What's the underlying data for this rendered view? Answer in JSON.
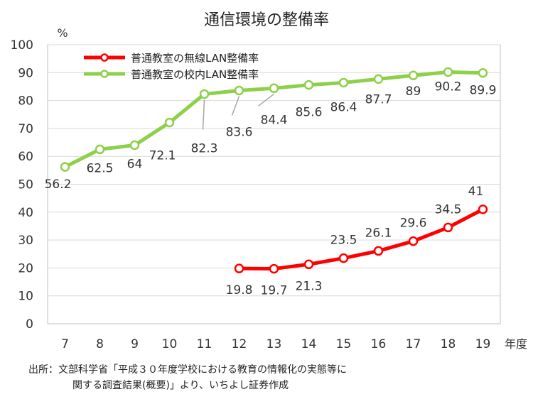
{
  "title": "通信環境の整備率",
  "chart_data": {
    "type": "line",
    "title": "通信環境の整備率",
    "ylabel": "%",
    "xlabel": "年度",
    "ylim": [
      0,
      100
    ],
    "yticks": [
      0,
      10,
      20,
      30,
      40,
      50,
      60,
      70,
      80,
      90,
      100
    ],
    "categories": [
      "7",
      "8",
      "9",
      "10",
      "11",
      "12",
      "13",
      "14",
      "15",
      "16",
      "17",
      "18",
      "19"
    ],
    "grid": "horizontal",
    "legend_position": "top-left",
    "series": [
      {
        "name": "普通教室の無線LAN整備率",
        "color": "#ff0000",
        "values": [
          null,
          null,
          null,
          null,
          null,
          19.8,
          19.7,
          21.3,
          23.5,
          26.1,
          29.6,
          34.5,
          41
        ],
        "labels": [
          null,
          null,
          null,
          null,
          null,
          "19.8",
          "19.7",
          "21.3",
          "23.5",
          "26.1",
          "29.6",
          "34.5",
          "41"
        ]
      },
      {
        "name": "普通教室の校内LAN整備率",
        "color": "#8dd04a",
        "values": [
          56.2,
          62.5,
          64,
          72.1,
          82.3,
          83.6,
          84.4,
          85.6,
          86.4,
          87.7,
          89,
          90.2,
          89.9
        ],
        "labels": [
          "56.2",
          "62.5",
          "64",
          "72.1",
          "82.3",
          "83.6",
          "84.4",
          "85.6",
          "86.4",
          "87.7",
          "89",
          "90.2",
          "89.9"
        ]
      }
    ]
  },
  "source": {
    "line1": "出所：文部科学省「平成３０年度学校における教育の情報化の実態等に",
    "line2": "関する調査結果(概要)」より、いちよし証券作成"
  }
}
